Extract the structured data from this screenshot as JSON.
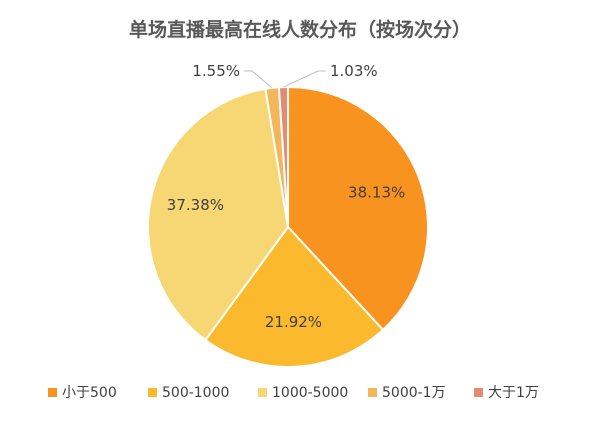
{
  "chart_data": {
    "type": "pie",
    "title": "单场直播最高在线人数分布（按场次分）",
    "categories": [
      "小于500",
      "500-1000",
      "1000-5000",
      "5000-1万",
      "大于1万"
    ],
    "values": [
      38.13,
      21.92,
      37.38,
      1.55,
      1.03
    ],
    "value_labels": [
      "38.13%",
      "21.92%",
      "37.38%",
      "1.55%",
      "1.03%"
    ],
    "colors": [
      "#F7931E",
      "#FBBA2D",
      "#F6D774",
      "#F3B659",
      "#E58A73"
    ],
    "legend_position": "bottom",
    "start_angle": "12 o'clock",
    "direction": "clockwise"
  }
}
